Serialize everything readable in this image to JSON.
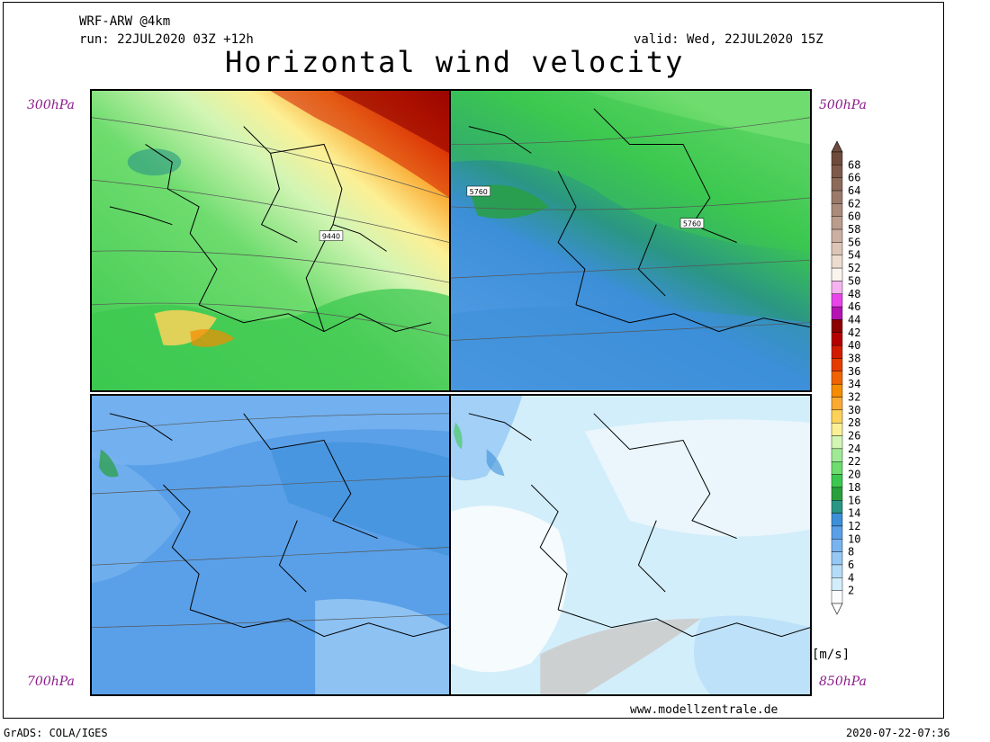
{
  "header": {
    "model": "WRF-ARW @4km",
    "run": "run: 22JUL2020 03Z +12h",
    "valid": "valid: Wed, 22JUL2020 15Z",
    "title": "Horizontal wind velocity"
  },
  "levels": {
    "top_left": "300hPa",
    "top_right": "500hPa",
    "bottom_left": "700hPa",
    "bottom_right": "850hPa"
  },
  "contour_labels": {
    "p300": "9440",
    "p500_a": "5760",
    "p500_b": "5760"
  },
  "legend": {
    "unit": "[m/s]",
    "ticks": [
      "68",
      "66",
      "64",
      "62",
      "60",
      "58",
      "56",
      "54",
      "52",
      "50",
      "48",
      "46",
      "44",
      "42",
      "40",
      "38",
      "36",
      "34",
      "32",
      "30",
      "28",
      "26",
      "24",
      "22",
      "20",
      "18",
      "16",
      "14",
      "12",
      "10",
      "8",
      "6",
      "4",
      "2"
    ],
    "colors": [
      "#6e4b3c",
      "#7d5a4b",
      "#8c6a5a",
      "#9b7a6a",
      "#ab8b7b",
      "#bb9d8d",
      "#cbb0a1",
      "#dcc5b7",
      "#ecdcd0",
      "#faf4ee",
      "#f5b4ef",
      "#e944e9",
      "#b414b4",
      "#8c0000",
      "#b40000",
      "#d21c00",
      "#e63c00",
      "#f06400",
      "#f58c00",
      "#faaa32",
      "#fcd25a",
      "#fcf096",
      "#d2f5b4",
      "#a0ea96",
      "#6edc6e",
      "#3cc850",
      "#28a03c",
      "#2a9683",
      "#3c8fd8",
      "#5aa0e8",
      "#78b4f0",
      "#96c8f5",
      "#b4dcf8",
      "#d2eefa",
      "#fafcfd"
    ]
  },
  "site": "www.modellzentrale.de",
  "footer": {
    "left": "GrADS: COLA/IGES",
    "right": "2020-07-22-07:36"
  }
}
